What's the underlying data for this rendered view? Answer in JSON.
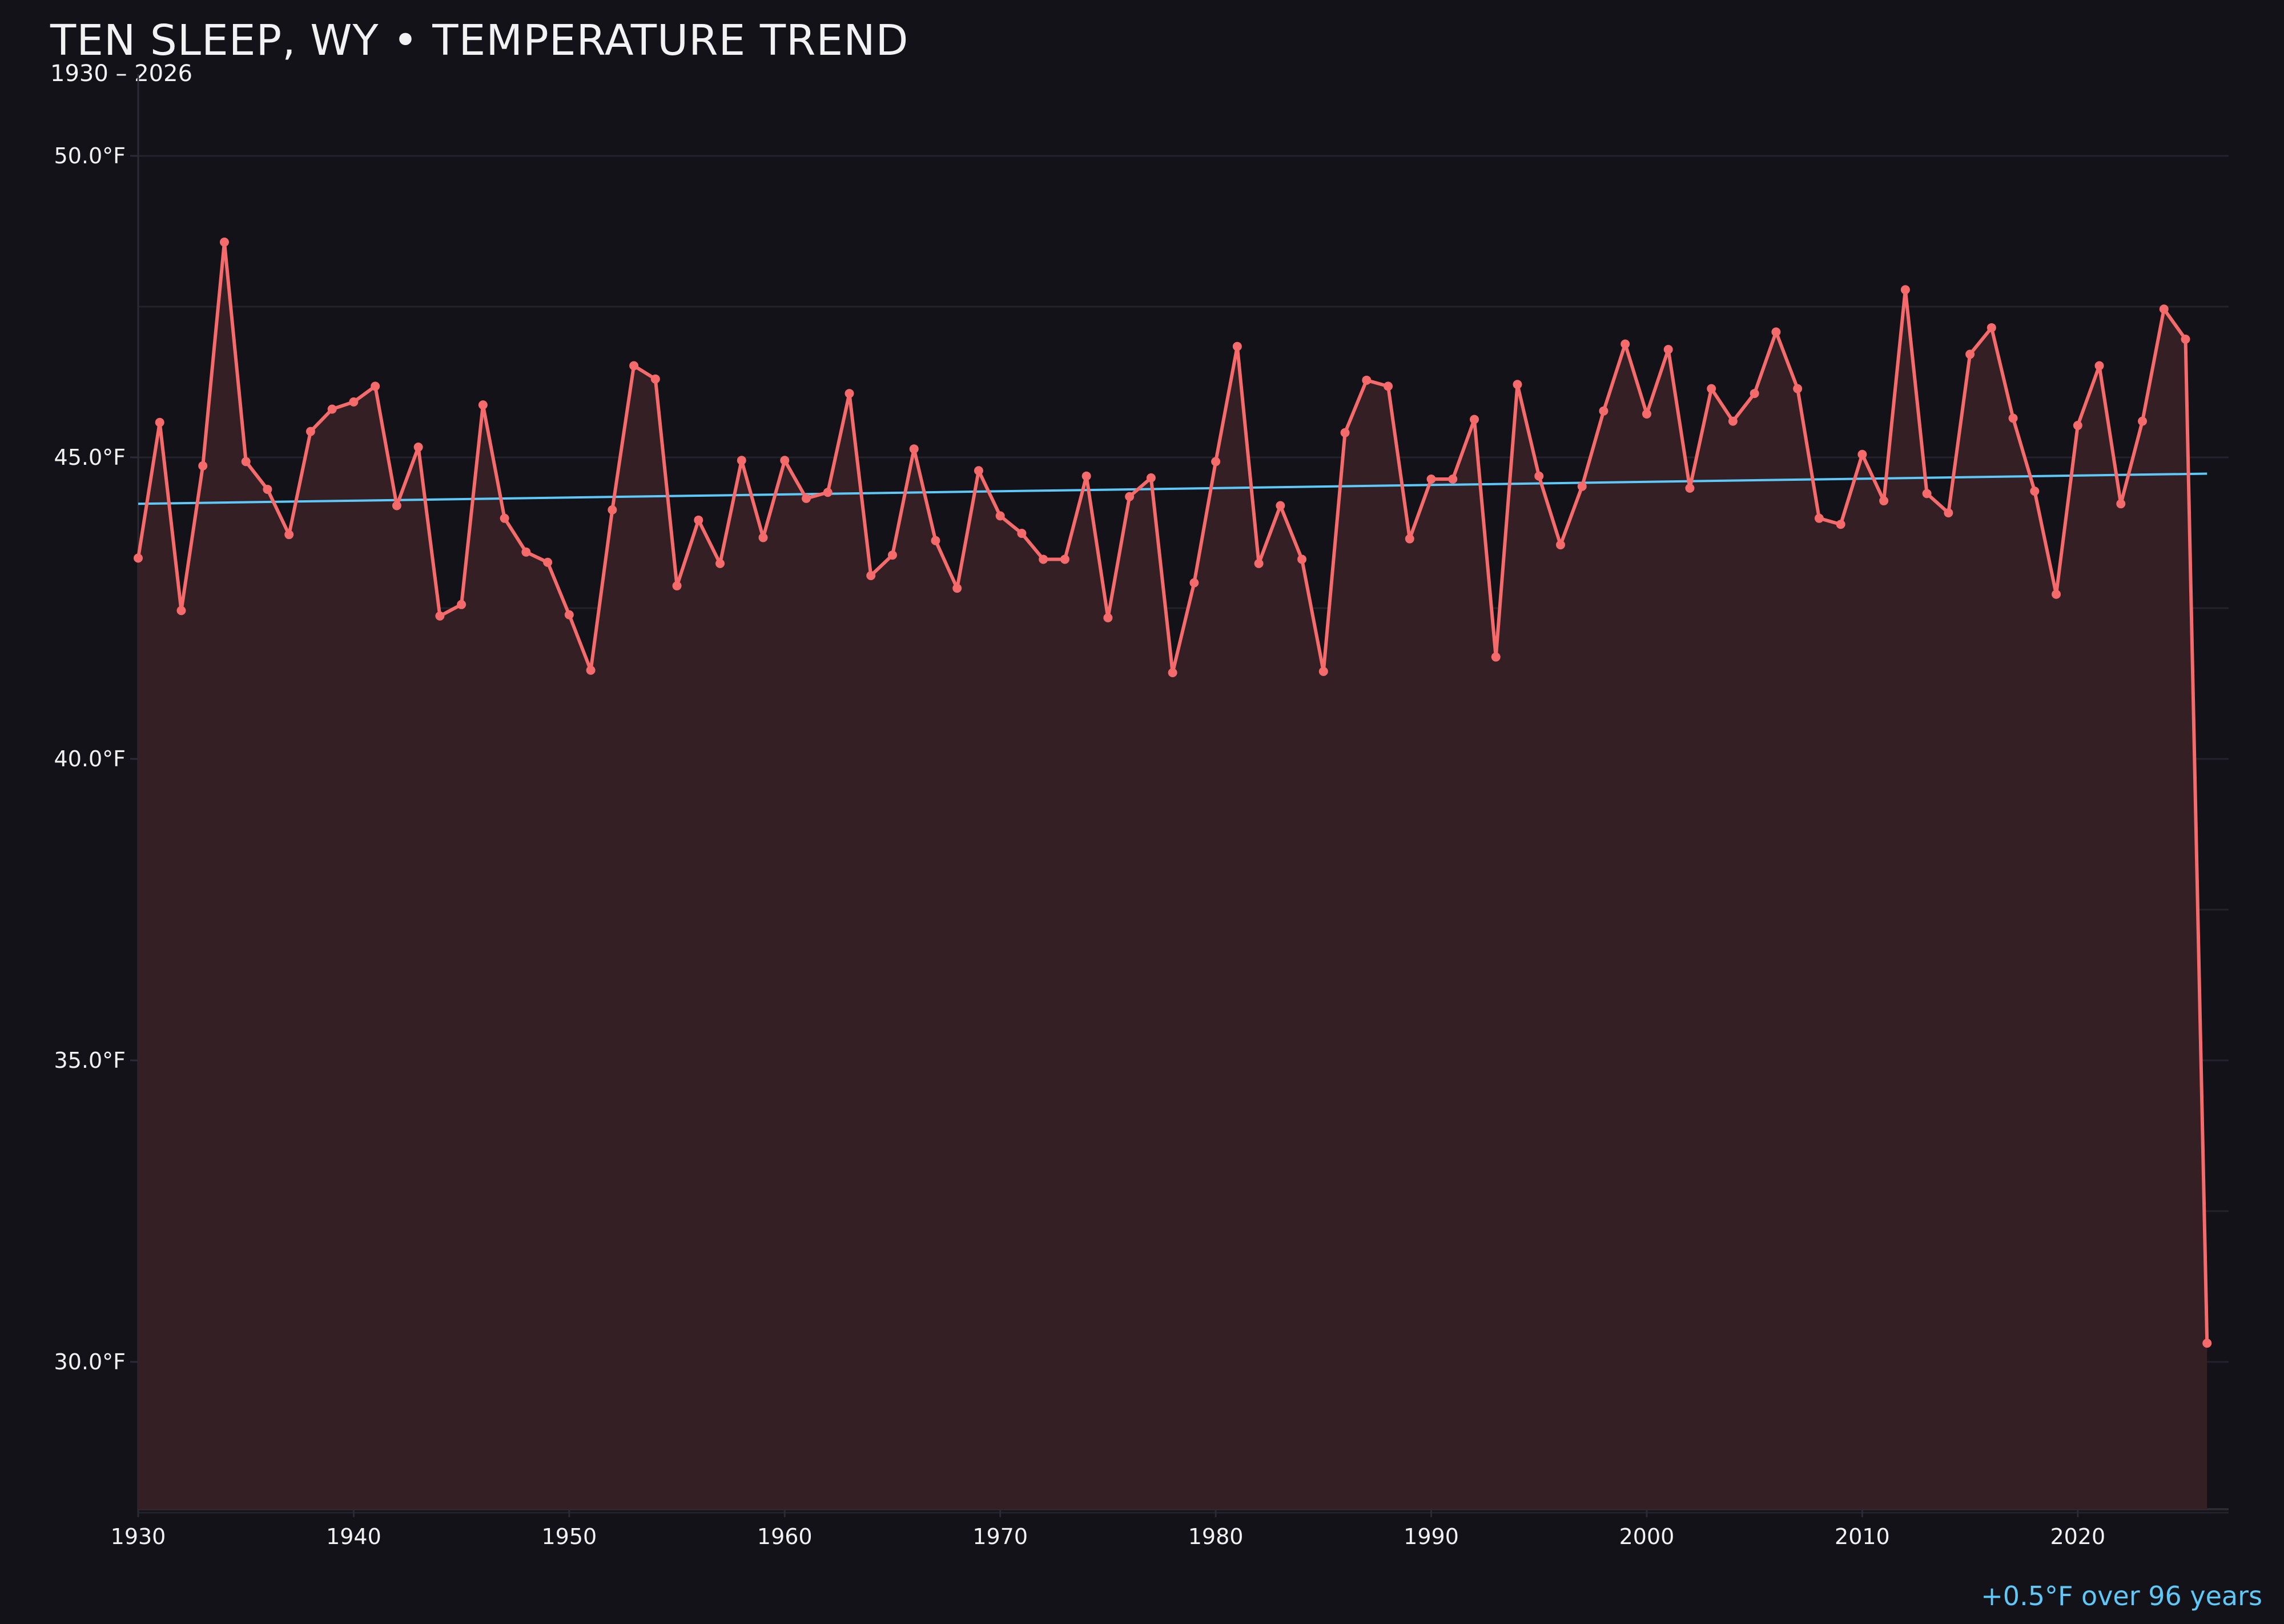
{
  "chart_data": {
    "type": "line",
    "title": "TEN SLEEP, WY • TEMPERATURE TREND",
    "subtitle": "1930 – 2026",
    "annotation": "+0.5°F over 96 years",
    "xlabel": "",
    "ylabel": "",
    "xlim": [
      1930,
      2027
    ],
    "ylim": [
      27.5,
      51.5
    ],
    "x_ticks": [
      1930,
      1940,
      1950,
      1960,
      1970,
      1980,
      1990,
      2000,
      2010,
      2020
    ],
    "y_ticks": [
      30,
      35,
      40,
      45,
      50
    ],
    "y_tick_labels": [
      "30.0°F",
      "35.0°F",
      "40.0°F",
      "45.0°F",
      "50.0°F"
    ],
    "grid": true,
    "colors": {
      "background": "#131218",
      "line": "#f56a6a",
      "fill": "#341f25",
      "trend": "#5ec8f8",
      "grid": "#24222a"
    },
    "x": [
      1930,
      1931,
      1932,
      1933,
      1934,
      1935,
      1936,
      1937,
      1938,
      1939,
      1940,
      1941,
      1942,
      1943,
      1944,
      1945,
      1946,
      1947,
      1948,
      1949,
      1950,
      1951,
      1952,
      1953,
      1954,
      1955,
      1956,
      1957,
      1958,
      1959,
      1960,
      1961,
      1962,
      1963,
      1964,
      1965,
      1966,
      1967,
      1968,
      1969,
      1970,
      1971,
      1972,
      1973,
      1974,
      1975,
      1976,
      1977,
      1978,
      1979,
      1980,
      1981,
      1982,
      1983,
      1984,
      1985,
      1986,
      1987,
      1988,
      1989,
      1990,
      1991,
      1992,
      1993,
      1994,
      1995,
      1996,
      1997,
      1998,
      1999,
      2000,
      2001,
      2002,
      2003,
      2004,
      2005,
      2006,
      2007,
      2008,
      2009,
      2010,
      2011,
      2012,
      2013,
      2014,
      2015,
      2016,
      2017,
      2018,
      2019,
      2020,
      2021,
      2022,
      2023,
      2024,
      2025,
      2026
    ],
    "series": [
      {
        "values": [
          43.33,
          45.58,
          42.46,
          44.86,
          48.57,
          44.93,
          44.47,
          43.72,
          45.43,
          45.8,
          45.92,
          46.18,
          44.2,
          45.17,
          42.37,
          42.56,
          45.87,
          43.99,
          43.43,
          43.26,
          42.39,
          41.47,
          44.13,
          46.52,
          46.3,
          42.87,
          43.96,
          43.24,
          44.95,
          43.67,
          44.95,
          44.32,
          44.42,
          46.06,
          43.04,
          43.38,
          45.14,
          43.62,
          42.83,
          44.78,
          44.03,
          43.74,
          43.31,
          43.31,
          44.69,
          42.34,
          44.35,
          44.66,
          41.43,
          42.92,
          44.93,
          46.84,
          43.24,
          44.2,
          43.31,
          41.45,
          45.41,
          46.28,
          46.18,
          43.65,
          44.64,
          44.64,
          45.63,
          41.69,
          46.21,
          44.69,
          43.55,
          44.52,
          45.77,
          46.88,
          45.72,
          46.79,
          44.49,
          46.14,
          45.6,
          46.06,
          47.08,
          46.14,
          43.99,
          43.89,
          45.05,
          44.28,
          47.78,
          44.4,
          44.08,
          46.71,
          47.15,
          45.65,
          44.44,
          42.73,
          45.53,
          46.52,
          44.23,
          45.6,
          47.46,
          46.96,
          30.31
        ]
      }
    ],
    "trend": {
      "x": [
        1930,
        2026
      ],
      "values": [
        44.23,
        44.73
      ]
    }
  }
}
